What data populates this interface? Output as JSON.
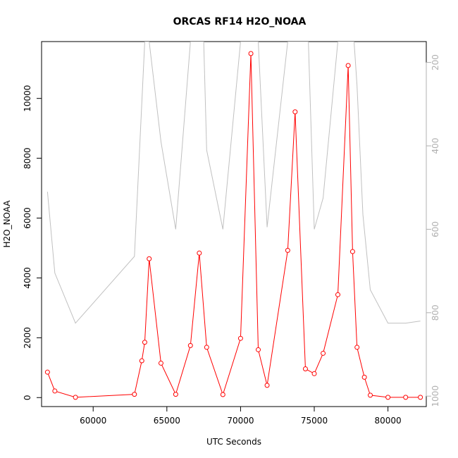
{
  "chart_data": {
    "type": "line",
    "title": "ORCAS RF14 H2O_NOAA",
    "xlabel": "UTC Seconds",
    "ylabel": "H2O_NOAA",
    "xlim": [
      56500,
      82600
    ],
    "ylim": [
      -300,
      11900
    ],
    "x_ticks": [
      60000,
      65000,
      70000,
      75000,
      80000
    ],
    "x_tick_labels": [
      "60000",
      "65000",
      "70000",
      "75000",
      "80000"
    ],
    "y_ticks": [
      0,
      2000,
      4000,
      6000,
      8000,
      10000
    ],
    "y_tick_labels": [
      "0",
      "2000",
      "4000",
      "6000",
      "8000",
      "10000"
    ],
    "y2_lim": [
      1025,
      150
    ],
    "y2_ticks": [
      200,
      400,
      600,
      800,
      1000
    ],
    "y2_tick_labels": [
      "200",
      "400",
      "600",
      "800",
      "1000"
    ],
    "grid": false,
    "colors": {
      "primary": "#ff0000",
      "secondary": "#c0c0c0"
    },
    "series": [
      {
        "axis": "left",
        "style": "line+open-circle",
        "color": "#ff0000",
        "x": [
          56900,
          57400,
          58800,
          62800,
          63300,
          63500,
          63800,
          64600,
          65600,
          66600,
          67200,
          67700,
          68800,
          70000,
          70700,
          71200,
          71800,
          73200,
          73700,
          74400,
          75000,
          75600,
          76600,
          77300,
          77600,
          77900,
          78400,
          78800,
          80000,
          81200,
          82200
        ],
        "y": [
          850,
          220,
          10,
          110,
          1230,
          1850,
          4640,
          1150,
          110,
          1740,
          4830,
          1680,
          100,
          1980,
          11500,
          1600,
          410,
          4920,
          9550,
          960,
          800,
          1480,
          3440,
          11100,
          4880,
          1680,
          680,
          80,
          10,
          10,
          10
        ]
      },
      {
        "axis": "right",
        "style": "line",
        "color": "#c0c0c0",
        "x": [
          56900,
          57400,
          58800,
          62800,
          63500,
          63800,
          64600,
          65600,
          66600,
          67000,
          67500,
          67700,
          68800,
          70000,
          70300,
          70700,
          71200,
          71800,
          73200,
          73500,
          74200,
          74600,
          75000,
          75600,
          76600,
          77000,
          77700,
          77900,
          78300,
          78800,
          80000,
          81200,
          82200
        ],
        "y": [
          510,
          705,
          825,
          665,
          150,
          150,
          390,
          600,
          150,
          150,
          150,
          410,
          600,
          150,
          150,
          150,
          150,
          595,
          150,
          150,
          150,
          150,
          600,
          525,
          150,
          150,
          150,
          255,
          565,
          745,
          825,
          825,
          820
        ]
      }
    ]
  }
}
